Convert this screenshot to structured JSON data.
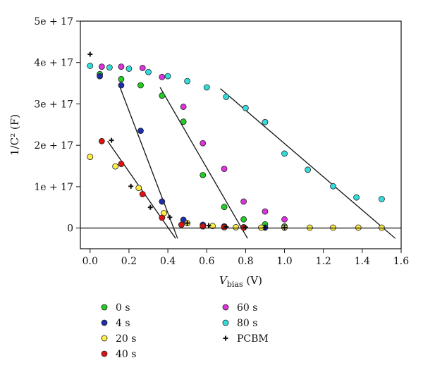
{
  "chart_data": {
    "type": "scatter",
    "title": "",
    "xlabel": {
      "main": "V",
      "sub": "bias",
      "unit": " (V)"
    },
    "ylabel": "1/C² (F)",
    "xlim": [
      -0.05,
      1.6
    ],
    "ylim": [
      -5e+16,
      5e+17
    ],
    "x_ticks": [
      0.0,
      0.2,
      0.4,
      0.6,
      0.8,
      1.0,
      1.2,
      1.4,
      1.6
    ],
    "x_tick_labels": [
      "0.0",
      "0.2",
      "0.4",
      "0.6",
      "0.8",
      "1.0",
      "1.2",
      "1.4",
      "1.6"
    ],
    "y_ticks": [
      0,
      1e+17,
      2e+17,
      3e+17,
      4e+17,
      5e+17
    ],
    "y_tick_labels": [
      "0",
      "1e + 17",
      "2e + 17",
      "3e + 17",
      "4e + 17",
      "5e + 17"
    ],
    "grid": false,
    "legend_position": "bottom",
    "series": [
      {
        "name": "0 s",
        "color": "#22cc22",
        "marker": "circle",
        "points": [
          [
            0.05,
            3.72e+17
          ],
          [
            0.16,
            3.6e+17
          ],
          [
            0.26,
            3.45e+17
          ],
          [
            0.37,
            3.2e+17
          ],
          [
            0.48,
            2.57e+17
          ],
          [
            0.58,
            1.28e+17
          ],
          [
            0.69,
            5.1e+16
          ],
          [
            0.79,
            2.1e+16
          ],
          [
            0.9,
            9000000000000000.0
          ],
          [
            1.0,
            4000000000000000.0
          ]
        ]
      },
      {
        "name": "4 s",
        "color": "#1c2ea8",
        "marker": "circle",
        "points": [
          [
            0.05,
            3.67e+17
          ],
          [
            0.16,
            3.45e+17
          ],
          [
            0.26,
            2.35e+17
          ],
          [
            0.37,
            6.4e+16
          ],
          [
            0.48,
            2e+16
          ],
          [
            0.58,
            8000000000000000.0
          ],
          [
            0.69,
            4000000000000000.0
          ],
          [
            0.79,
            2000000000000000.0
          ],
          [
            0.9,
            1000000000000000.0
          ],
          [
            1.0,
            1000000000000000.0
          ]
        ]
      },
      {
        "name": "20 s",
        "color": "#ffee44",
        "marker": "circle",
        "points": [
          [
            0.0,
            1.72e+17
          ],
          [
            0.13,
            1.49e+17
          ],
          [
            0.25,
            9.7e+16
          ],
          [
            0.38,
            3.6e+16
          ],
          [
            0.5,
            1.2e+16
          ],
          [
            0.63,
            5000000000000000.0
          ],
          [
            0.75,
            2000000000000000.0
          ],
          [
            0.88,
            1000000000000000.0
          ],
          [
            1.0,
            1000000000000000.0
          ],
          [
            1.13,
            1000000000000000.0
          ],
          [
            1.25,
            1000000000000000.0
          ],
          [
            1.38,
            1000000000000000.0
          ],
          [
            1.5,
            1000000000000000.0
          ]
        ]
      },
      {
        "name": "40 s",
        "color": "#dd1111",
        "marker": "circle",
        "points": [
          [
            0.06,
            2.1e+17
          ],
          [
            0.16,
            1.55e+17
          ],
          [
            0.27,
            8.2e+16
          ],
          [
            0.37,
            2.5e+16
          ],
          [
            0.47,
            8000000000000000.0
          ],
          [
            0.58,
            4000000000000000.0
          ],
          [
            0.69,
            2000000000000000.0
          ],
          [
            0.79,
            1000000000000000.0
          ]
        ]
      },
      {
        "name": "60 s",
        "color": "#dd33dd",
        "marker": "circle",
        "points": [
          [
            0.06,
            3.9e+17
          ],
          [
            0.16,
            3.9e+17
          ],
          [
            0.27,
            3.87e+17
          ],
          [
            0.37,
            3.65e+17
          ],
          [
            0.48,
            2.93e+17
          ],
          [
            0.58,
            2.05e+17
          ],
          [
            0.69,
            1.43e+17
          ],
          [
            0.79,
            6.4e+16
          ],
          [
            0.9,
            4e+16
          ],
          [
            1.0,
            2.1e+16
          ]
        ]
      },
      {
        "name": "80 s",
        "color": "#33dddd",
        "marker": "circle",
        "points": [
          [
            0.0,
            3.92e+17
          ],
          [
            0.1,
            3.88e+17
          ],
          [
            0.2,
            3.85e+17
          ],
          [
            0.3,
            3.77e+17
          ],
          [
            0.4,
            3.67e+17
          ],
          [
            0.5,
            3.55e+17
          ],
          [
            0.6,
            3.4e+17
          ],
          [
            0.7,
            3.17e+17
          ],
          [
            0.8,
            2.9e+17
          ],
          [
            0.9,
            2.56e+17
          ],
          [
            1.0,
            1.8e+17
          ],
          [
            1.12,
            1.41e+17
          ],
          [
            1.25,
            1.01e+17
          ],
          [
            1.37,
            7.4e+16
          ],
          [
            1.5,
            7e+16
          ]
        ]
      },
      {
        "name": "PCBM",
        "color": "#111111",
        "marker": "plus",
        "points": [
          [
            0.0,
            4.2e+17
          ],
          [
            0.11,
            2.12e+17
          ],
          [
            0.21,
            1.01e+17
          ],
          [
            0.31,
            5e+16
          ],
          [
            0.41,
            2.6e+16
          ],
          [
            0.5,
            1.2e+16
          ],
          [
            0.61,
            6000000000000000.0
          ],
          [
            0.7,
            3000000000000000.0
          ],
          [
            0.8,
            2000000000000000.0
          ],
          [
            0.9,
            1000000000000000.0
          ],
          [
            1.0,
            1000000000000000.0
          ]
        ]
      }
    ],
    "fit_lines": [
      [
        [
          0.09,
          2.1e+17
        ],
        [
          0.44,
          -2.5e+16
        ]
      ],
      [
        [
          0.15,
          3.45e+17
        ],
        [
          0.45,
          -2.5e+16
        ]
      ],
      [
        [
          0.36,
          3.4e+17
        ],
        [
          0.81,
          -2.5e+16
        ]
      ],
      [
        [
          0.67,
          3.37e+17
        ],
        [
          1.57,
          -2.5e+16
        ]
      ]
    ],
    "legend_columns": [
      [
        "0 s",
        "4 s",
        "20 s",
        "40 s"
      ],
      [
        "60 s",
        "80 s",
        "PCBM"
      ]
    ]
  }
}
